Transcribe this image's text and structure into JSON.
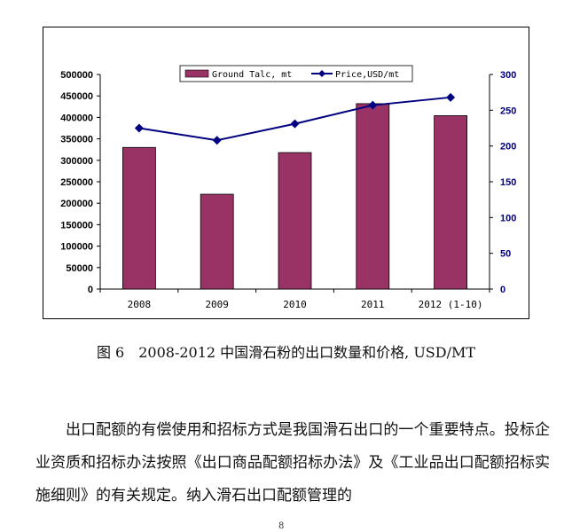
{
  "chart_data": {
    "type": "bar-line",
    "categories": [
      "2008",
      "2009",
      "2010",
      "2011",
      "2012 (1-10)"
    ],
    "series": [
      {
        "name": "Ground Talc, mt",
        "type": "bar",
        "axis": "left",
        "values": [
          330000,
          221000,
          318000,
          432000,
          404000
        ],
        "color": "#993366"
      },
      {
        "name": "Price,USD/mt",
        "type": "line",
        "axis": "right",
        "values": [
          225,
          208,
          231,
          257,
          268
        ],
        "color": "#000080"
      }
    ],
    "y_left": {
      "min": 0,
      "max": 500000,
      "step": 50000,
      "ticks": [
        "0",
        "50000",
        "100000",
        "150000",
        "200000",
        "250000",
        "300000",
        "350000",
        "400000",
        "450000",
        "500000"
      ]
    },
    "y_right": {
      "min": 0,
      "max": 300,
      "step": 50,
      "ticks": [
        "0",
        "50",
        "100",
        "150",
        "200",
        "250",
        "300"
      ]
    },
    "legend_position": "top-center",
    "grid": false
  },
  "caption": "图 6　2008-2012  中国滑石粉的出口数量和价格, USD/MT",
  "paragraph": "出口配额的有偿使用和招标方式是我国滑石出口的一个重要特点。投标企业资质和招标办法按照《出口商品配额招标办法》及《工业品出口配额招标实施细则》的有关规定。纳入滑石出口配额管理的",
  "page_mark": "8"
}
